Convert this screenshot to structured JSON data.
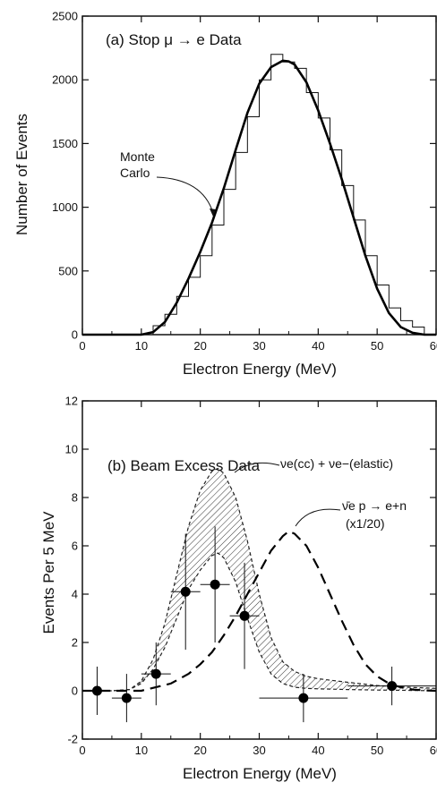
{
  "chart_data": [
    {
      "type": "line",
      "panel": "a",
      "title": "(a) Stop μ → e Data",
      "xlabel": "Electron Energy (MeV)",
      "ylabel": "Number of Events",
      "xlim": [
        0,
        60
      ],
      "ylim": [
        0,
        2500
      ],
      "xticks": [
        0,
        10,
        20,
        30,
        40,
        50,
        60
      ],
      "yticks": [
        0,
        500,
        1000,
        1500,
        2000,
        2500
      ],
      "grid": false,
      "annotations": [
        {
          "text": "Monte",
          "line2": "Carlo"
        }
      ],
      "series": [
        {
          "name": "Stop μ → e Data",
          "style": "step histogram",
          "bin_width": 2,
          "bin_left_edges": [
            12,
            14,
            16,
            18,
            20,
            22,
            24,
            26,
            28,
            30,
            32,
            34,
            36,
            38,
            40,
            42,
            44,
            46,
            48,
            50,
            52,
            54,
            56,
            58
          ],
          "values": [
            70,
            160,
            300,
            450,
            620,
            860,
            1140,
            1430,
            1710,
            2000,
            2200,
            2140,
            2090,
            1900,
            1700,
            1450,
            1170,
            900,
            620,
            390,
            210,
            110,
            60,
            0
          ]
        },
        {
          "name": "Monte Carlo",
          "style": "smooth curve",
          "x": [
            0,
            10,
            12,
            14,
            16,
            18,
            20,
            22,
            24,
            26,
            28,
            30,
            32,
            34,
            35,
            36,
            38,
            40,
            42,
            44,
            46,
            48,
            50,
            52,
            54,
            56,
            58,
            60
          ],
          "y": [
            0,
            0,
            20,
            100,
            250,
            440,
            650,
            880,
            1150,
            1450,
            1740,
            1970,
            2100,
            2150,
            2145,
            2120,
            1980,
            1760,
            1500,
            1220,
            920,
            620,
            360,
            170,
            60,
            15,
            0,
            0
          ]
        }
      ]
    },
    {
      "type": "scatter",
      "panel": "b",
      "title": "(b) Beam Excess Data",
      "xlabel": "Electron Energy (MeV)",
      "ylabel": "Events Per 5 MeV",
      "xlim": [
        0,
        60
      ],
      "ylim": [
        -2,
        12
      ],
      "xticks": [
        0,
        10,
        20,
        30,
        40,
        50,
        60
      ],
      "yticks": [
        -2,
        0,
        2,
        4,
        6,
        8,
        10,
        12
      ],
      "grid": false,
      "annotations": [
        {
          "text": "νe(cc) + νe−(elastic)"
        },
        {
          "text": "ν̄e p → e+n",
          "line2": "(x1/20)"
        }
      ],
      "series": [
        {
          "name": "Beam Excess Data",
          "style": "points with error bars",
          "x": [
            2.5,
            7.5,
            12.5,
            17.5,
            22.5,
            27.5,
            37.5,
            52.5
          ],
          "y": [
            0.0,
            -0.3,
            0.7,
            4.1,
            4.4,
            3.1,
            -0.3,
            0.2
          ],
          "xerr": [
            2.5,
            2.5,
            2.5,
            2.5,
            2.5,
            2.5,
            7.5,
            7.5
          ],
          "yerr": [
            1.0,
            1.0,
            1.3,
            2.4,
            2.4,
            2.2,
            1.0,
            0.8
          ]
        },
        {
          "name": "νe(cc) + νe−(elastic) upper",
          "style": "dashed curve (band upper edge)",
          "x": [
            0,
            5,
            8,
            10,
            12,
            14,
            16,
            18,
            20,
            22,
            23,
            24,
            26,
            28,
            30,
            32,
            34,
            36,
            38,
            40,
            45,
            50,
            55,
            60
          ],
          "y": [
            0,
            0,
            0.05,
            0.4,
            1.3,
            2.8,
            4.8,
            6.8,
            8.3,
            9.1,
            9.2,
            9.0,
            8.0,
            6.2,
            4.0,
            2.2,
            1.2,
            0.8,
            0.6,
            0.5,
            0.35,
            0.22,
            0.15,
            0.1
          ]
        },
        {
          "name": "νe(cc) + νe−(elastic) lower",
          "style": "dashed curve (band lower edge)",
          "x": [
            0,
            5,
            8,
            10,
            12,
            14,
            16,
            18,
            20,
            22,
            23,
            24,
            26,
            28,
            30,
            32,
            34,
            36,
            38,
            40,
            45,
            50,
            55,
            60
          ],
          "y": [
            0,
            0,
            0.05,
            0.3,
            0.9,
            1.8,
            3.0,
            4.2,
            5.0,
            5.6,
            5.7,
            5.5,
            4.5,
            3.0,
            1.6,
            0.7,
            0.3,
            0.15,
            0.1,
            0.08,
            0.05,
            0.03,
            0.02,
            0.0
          ]
        },
        {
          "name": "ν̄e p → e+n (x1/20)",
          "style": "dashed curve",
          "x": [
            0,
            5,
            10,
            15,
            18,
            20,
            22,
            24,
            26,
            28,
            30,
            32,
            34,
            35,
            36,
            38,
            40,
            42,
            44,
            46,
            48,
            50,
            52,
            54,
            56,
            58,
            60
          ],
          "y": [
            0,
            0,
            0,
            0.3,
            0.7,
            1.1,
            1.6,
            2.3,
            3.1,
            4.0,
            4.9,
            5.8,
            6.4,
            6.6,
            6.5,
            6.0,
            5.1,
            4.0,
            2.9,
            1.9,
            1.1,
            0.6,
            0.3,
            0.15,
            0.05,
            0.02,
            0
          ]
        }
      ]
    }
  ]
}
